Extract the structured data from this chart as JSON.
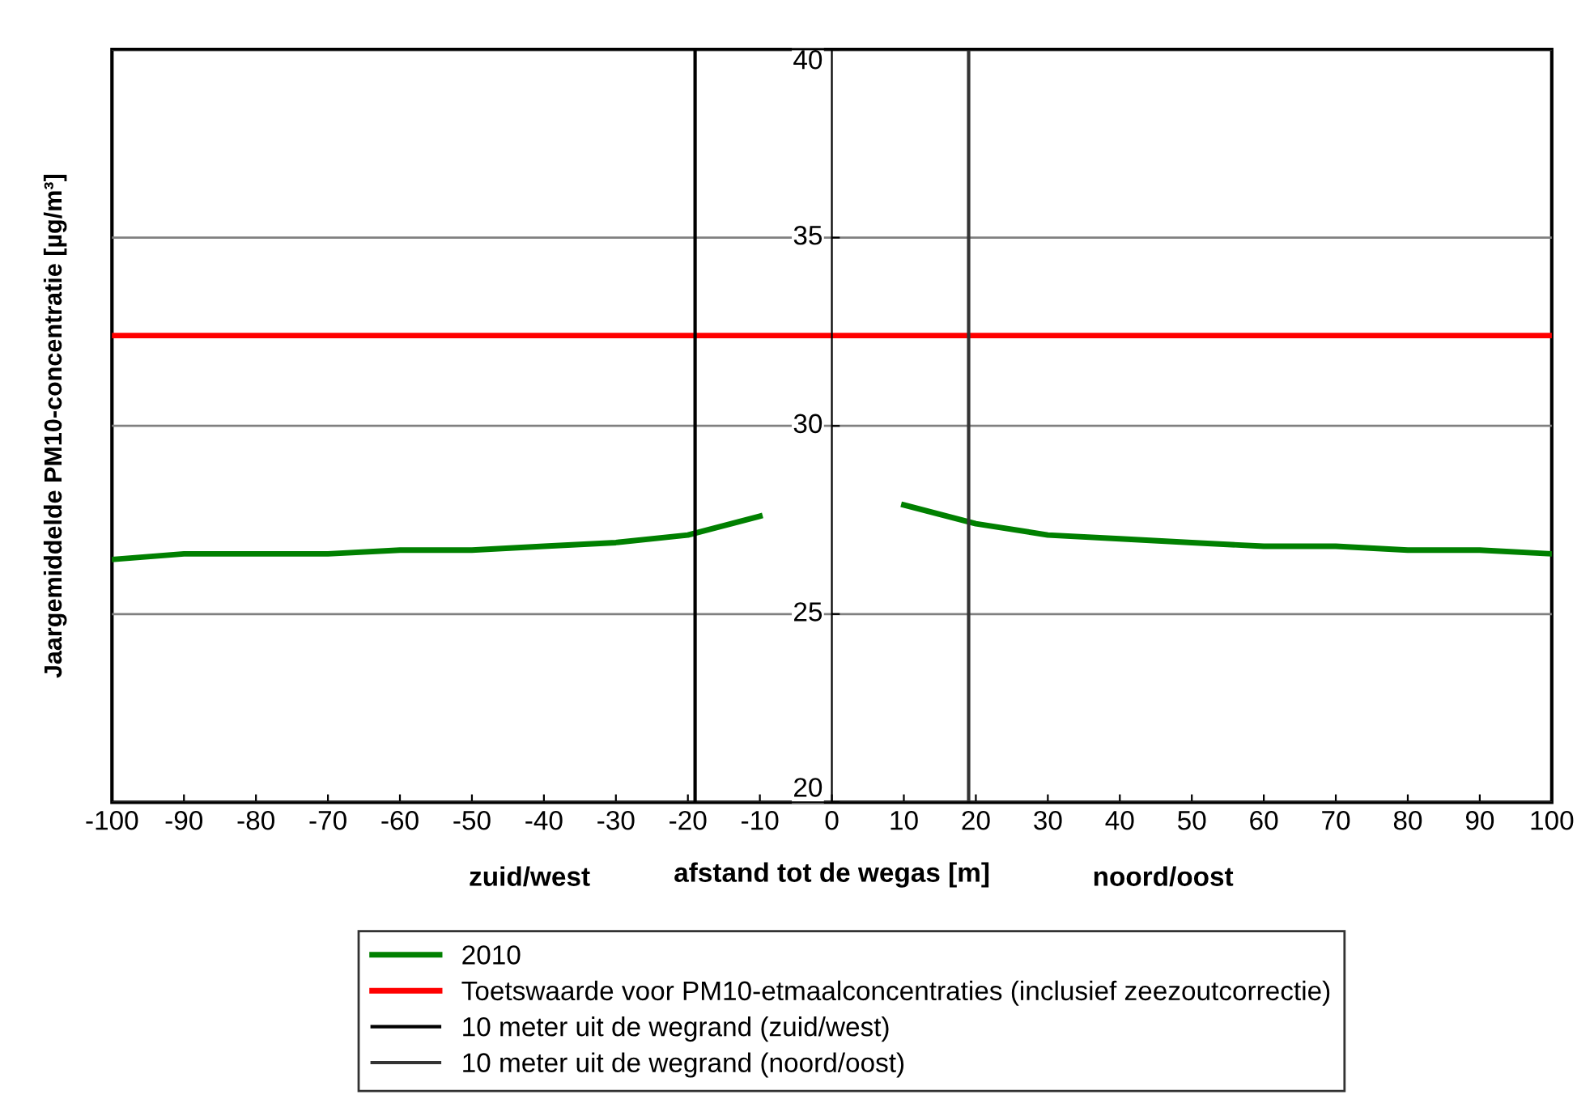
{
  "chart_data": {
    "type": "line",
    "xlabel": "afstand tot de wegas [m]",
    "ylabel": "Jaargemiddelde PM10-concentratie [µg/m³]",
    "x": [
      -100,
      -90,
      -80,
      -70,
      -60,
      -50,
      -40,
      -30,
      -20,
      -10,
      0,
      10,
      20,
      30,
      40,
      50,
      60,
      70,
      80,
      90,
      100
    ],
    "series": [
      {
        "name": "2010",
        "color": "#008000",
        "values": [
          26.45,
          26.6,
          26.6,
          26.6,
          26.7,
          26.7,
          26.8,
          26.9,
          27.1,
          27.6,
          null,
          27.9,
          27.4,
          27.1,
          27.0,
          26.9,
          26.8,
          26.8,
          26.7,
          26.7,
          26.6
        ]
      }
    ],
    "ref_lines": [
      {
        "axis": "y",
        "value": 32.4,
        "label": "Toetswaarde voor PM10-etmaalconcentraties (inclusief zeezoutcorrectie)",
        "color": "#ff0000"
      },
      {
        "axis": "x",
        "value": -19,
        "label": "10 meter uit de wegrand (zuid/west)",
        "color": "#000000"
      },
      {
        "axis": "x",
        "value": 19,
        "label": "10 meter uit de wegrand (noord/oost)",
        "color": "#333333"
      }
    ],
    "annotations": [
      "zuid/west",
      "noord/oost"
    ],
    "xlim": [
      -100,
      100
    ],
    "xticks": [
      -100,
      -90,
      -80,
      -70,
      -60,
      -50,
      -40,
      -30,
      -20,
      -10,
      0,
      10,
      20,
      30,
      40,
      50,
      60,
      70,
      80,
      90,
      100
    ],
    "ylim": [
      20,
      40
    ],
    "yticks": [
      20,
      25,
      30,
      35,
      40
    ],
    "grid": "y",
    "legend": "bottom",
    "marker": "none",
    "line_style": "solid"
  }
}
